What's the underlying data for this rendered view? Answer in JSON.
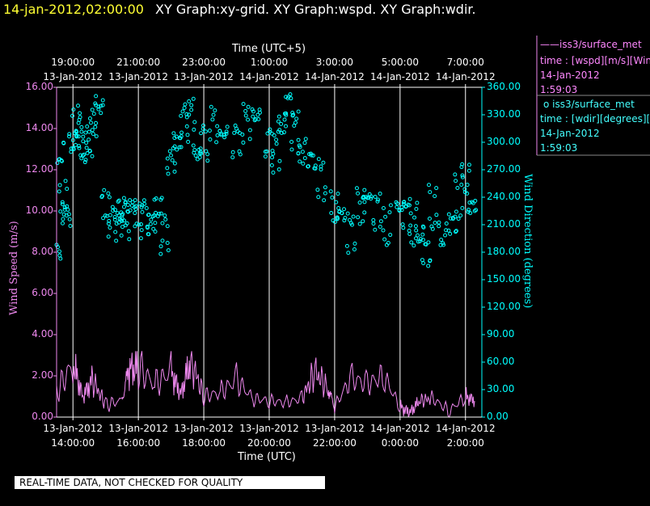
{
  "header": {
    "time": "14-jan-2012,02:00:00",
    "graphs": "XY Graph:xy-grid.  XY Graph:wspd.  XY Graph:wdir."
  },
  "colors": {
    "wspd": "#ee88ee",
    "wdir": "#00ffff",
    "grid": "#ffffff",
    "time": "#ffff33"
  },
  "legend": {
    "wspd": {
      "symbol": "——",
      "name": "iss3/surface_met",
      "desc": "time : [wspd][m/s][Wind",
      "date": "14-Jan-2012",
      "time": "1:59:03"
    },
    "wdir": {
      "symbol": "o",
      "name": "iss3/surface_met",
      "desc": "time : [wdir][degrees][Wi",
      "date": "14-Jan-2012",
      "time": "1:59:03"
    }
  },
  "footer": {
    "disclaimer": "REAL-TIME DATA, NOT CHECKED FOR QUALITY"
  },
  "chart_data": {
    "type": "scatter",
    "x_range": [
      "13-Jan-2012 13:30",
      "14-Jan-2012 02:30"
    ],
    "top_axis": {
      "label": "Time (UTC+5)",
      "ticks": [
        {
          "t": "19:00:00",
          "d": "13-Jan-2012"
        },
        {
          "t": "21:00:00",
          "d": "13-Jan-2012"
        },
        {
          "t": "23:00:00",
          "d": "13-Jan-2012"
        },
        {
          "t": "1:00:00",
          "d": "14-Jan-2012"
        },
        {
          "t": "3:00:00",
          "d": "14-Jan-2012"
        },
        {
          "t": "5:00:00",
          "d": "14-Jan-2012"
        },
        {
          "t": "7:00:00",
          "d": "14-Jan-2012"
        }
      ]
    },
    "bottom_axis": {
      "label": "Time (UTC)",
      "ticks": [
        {
          "d": "13-Jan-2012",
          "t": "14:00:00"
        },
        {
          "d": "13-Jan-2012",
          "t": "16:00:00"
        },
        {
          "d": "13-Jan-2012",
          "t": "18:00:00"
        },
        {
          "d": "13-Jan-2012",
          "t": "20:00:00"
        },
        {
          "d": "13-Jan-2012",
          "t": "22:00:00"
        },
        {
          "d": "14-Jan-2012",
          "t": "0:00:00"
        },
        {
          "d": "14-Jan-2012",
          "t": "2:00:00"
        }
      ]
    },
    "y_left": {
      "label": "Wind Speed (m/s)",
      "range": [
        0,
        16
      ],
      "ticks": [
        "0.00",
        "2.00",
        "4.00",
        "6.00",
        "8.00",
        "10.00",
        "12.00",
        "14.00",
        "16.00"
      ]
    },
    "y_right": {
      "label": "Wind Direction (degrees)",
      "range": [
        0,
        360
      ],
      "ticks": [
        "0.00",
        "30.00",
        "60.00",
        "90.00",
        "120.00",
        "150.00",
        "180.00",
        "210.00",
        "240.00",
        "270.00",
        "300.00",
        "330.00",
        "360.00"
      ]
    },
    "grid": "vertical lines at each time tick",
    "series": [
      {
        "name": "wspd",
        "kind": "line",
        "axis": "left",
        "x_hours_utc": [
          13.5,
          14.0,
          14.3,
          14.6,
          15.0,
          15.5,
          15.7,
          16.0,
          16.5,
          17.0,
          17.3,
          17.6,
          18.0,
          18.5,
          19.0,
          19.5,
          20.0,
          20.5,
          21.0,
          21.4,
          21.8,
          22.0,
          22.5,
          23.0,
          23.5,
          24.0,
          24.3,
          24.6,
          25.0,
          25.5,
          26.0,
          26.3
        ],
        "values": [
          1.2,
          2.6,
          1.0,
          1.8,
          0.6,
          0.8,
          2.3,
          2.4,
          1.6,
          2.2,
          1.1,
          2.8,
          1.0,
          1.2,
          1.8,
          0.9,
          0.8,
          0.7,
          0.9,
          2.2,
          1.4,
          0.5,
          1.9,
          1.6,
          2.0,
          0.5,
          0.2,
          0.8,
          0.9,
          0.3,
          1.0,
          0.8
        ]
      },
      {
        "name": "wdir",
        "kind": "scatter",
        "axis": "right",
        "x_hours_utc": [
          13.5,
          13.6,
          13.7,
          13.8,
          14.0,
          14.1,
          14.2,
          14.3,
          14.5,
          14.6,
          14.8,
          15.0,
          15.2,
          15.4,
          15.5,
          15.6,
          15.8,
          16.0,
          16.2,
          16.4,
          16.6,
          16.8,
          17.0,
          17.2,
          17.4,
          17.6,
          17.8,
          18.0,
          18.3,
          18.6,
          19.0,
          19.3,
          19.6,
          20.0,
          20.2,
          20.4,
          20.6,
          20.8,
          21.0,
          21.3,
          21.6,
          22.0,
          22.2,
          22.5,
          22.8,
          23.0,
          23.3,
          23.6,
          24.0,
          24.2,
          24.4,
          24.6,
          24.8,
          25.0,
          25.3,
          25.6,
          25.8,
          26.0,
          26.2
        ],
        "values": [
          180,
          290,
          240,
          220,
          300,
          320,
          310,
          290,
          300,
          320,
          340,
          230,
          210,
          220,
          225,
          215,
          230,
          220,
          215,
          210,
          230,
          200,
          280,
          300,
          320,
          330,
          290,
          300,
          320,
          310,
          300,
          320,
          330,
          300,
          290,
          320,
          340,
          310,
          290,
          280,
          260,
          230,
          220,
          200,
          230,
          240,
          225,
          210,
          230,
          220,
          210,
          200,
          180,
          230,
          200,
          210,
          240,
          260,
          230
        ]
      }
    ]
  }
}
